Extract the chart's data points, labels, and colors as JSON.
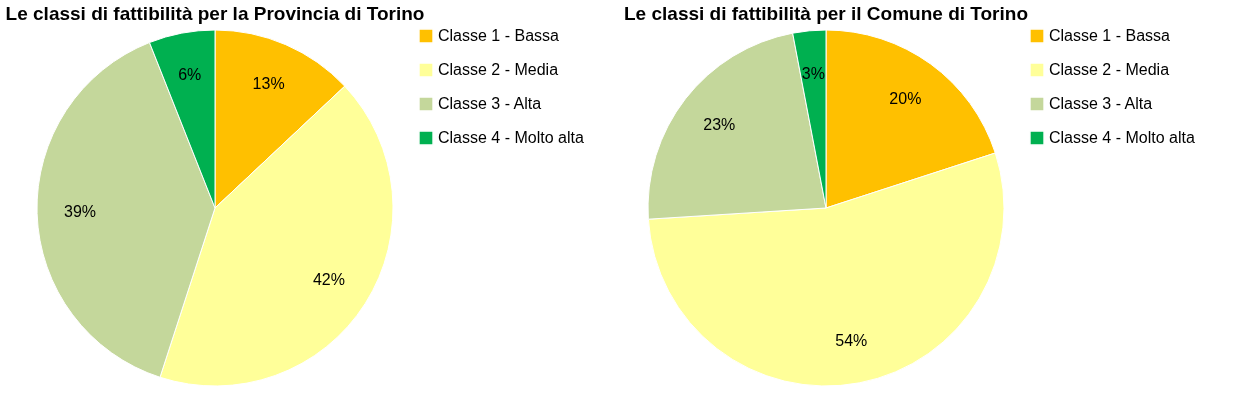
{
  "chart_data": [
    {
      "type": "pie",
      "title": "Le classi di fattibilità per la Provincia di Torino",
      "categories": [
        "Classe 1 - Bassa",
        "Classe 2 - Media",
        "Classe 3 - Alta",
        "Classe 4 - Molto alta"
      ],
      "values": [
        13,
        42,
        39,
        6
      ],
      "value_labels": [
        "13%",
        "42%",
        "39%",
        "6%"
      ],
      "colors": [
        "#ffc000",
        "#ffff99",
        "#c4d79b",
        "#00b050"
      ],
      "legend": "right"
    },
    {
      "type": "pie",
      "title": "Le classi di fattibilità per il Comune di Torino",
      "categories": [
        "Classe 1 - Bassa",
        "Classe 2 - Media",
        "Classe 3 - Alta",
        "Classe 4 - Molto alta"
      ],
      "values": [
        20,
        54,
        23,
        3
      ],
      "value_labels": [
        "20%",
        "54%",
        "23%",
        "3%"
      ],
      "colors": [
        "#ffc000",
        "#ffff99",
        "#c4d79b",
        "#00b050"
      ],
      "legend": "right"
    }
  ]
}
